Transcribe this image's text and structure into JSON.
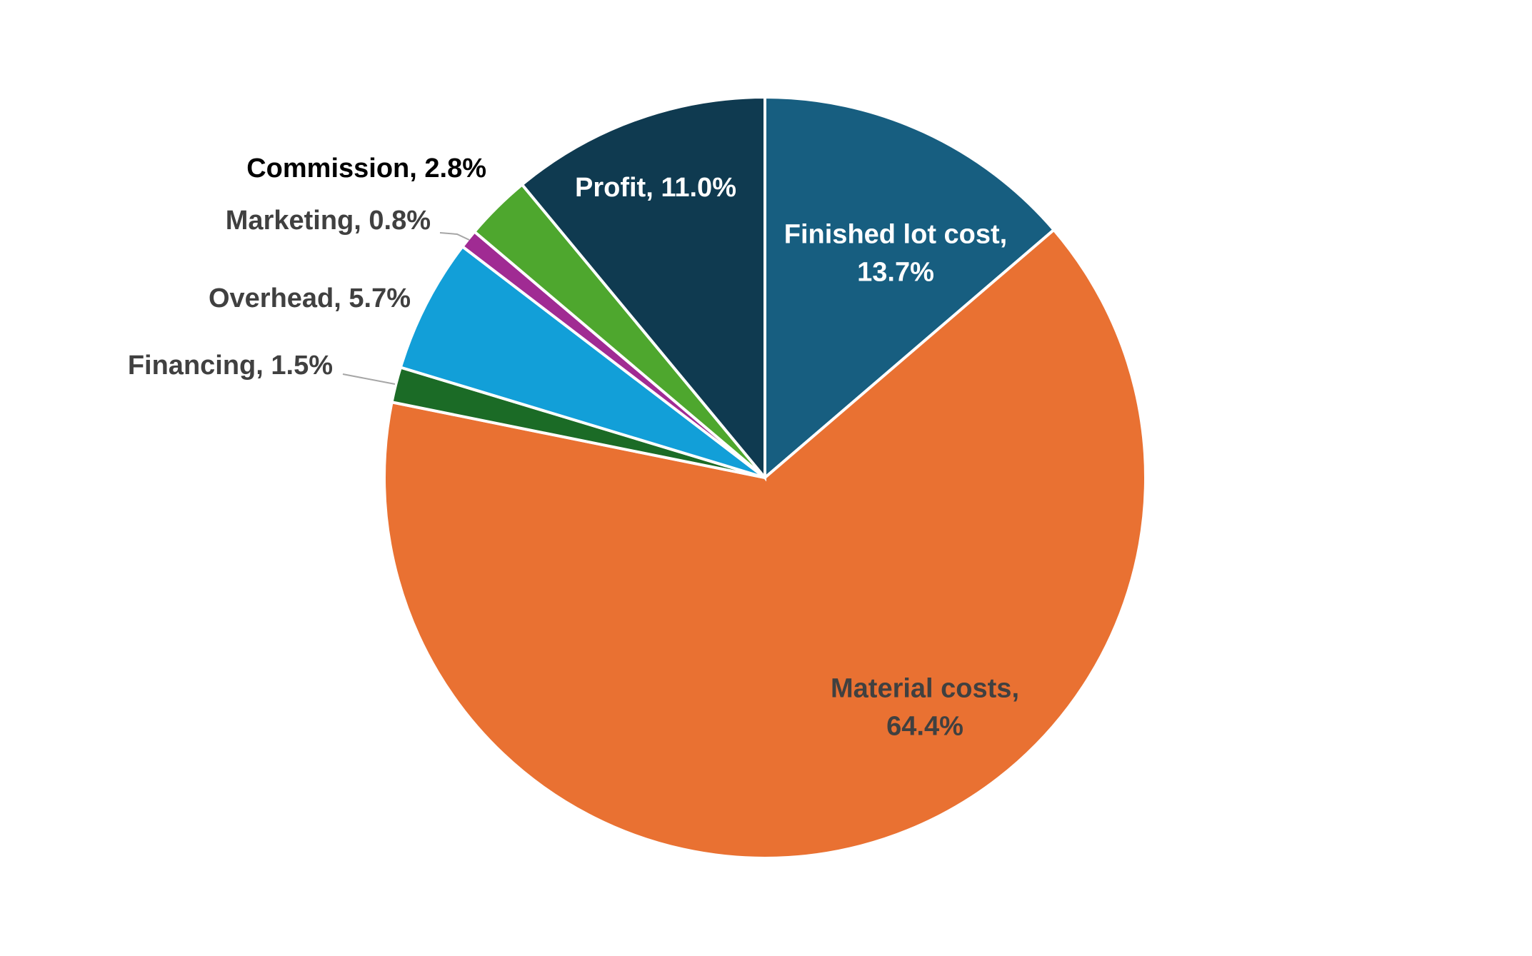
{
  "chart_data": {
    "type": "pie",
    "labels": [
      "Finished lot cost, 13.7%",
      "Material costs, 64.4%",
      "Financing, 1.5%",
      "Overhead, 5.7%",
      "Marketing, 0.8%",
      "Commission, 2.8%",
      "Profit, 11.0%"
    ],
    "values": [
      13.7,
      64.4,
      1.5,
      5.7,
      0.8,
      2.8,
      11.0
    ],
    "colors": [
      "#175E80",
      "#E97132",
      "#1B6B26",
      "#129FD8",
      "#A02B93",
      "#4EA72E",
      "#0F3A50"
    ]
  }
}
